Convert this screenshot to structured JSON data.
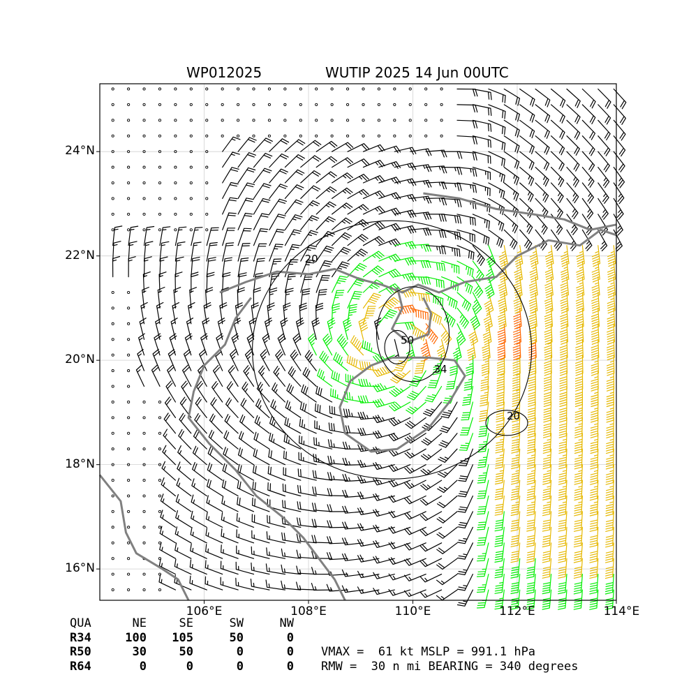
{
  "title_left": "WP012025",
  "title_right": "WUTIP 2025 14 Jun 00UTC",
  "colors": {
    "coast": "#808080",
    "grid": "#d0d0d0",
    "barb_weak": "#000000",
    "barb_34": "#00ee00",
    "barb_50": "#e6b800",
    "barb_64": "#ff6600",
    "contour": "#000000"
  },
  "quadrant_table": {
    "header": [
      "QUA",
      "NE",
      "SE",
      "SW",
      "NW"
    ],
    "rows": [
      {
        "label": "R34",
        "values": [
          "100",
          "105",
          "50",
          "0"
        ]
      },
      {
        "label": "R50",
        "values": [
          "30",
          "50",
          "0",
          "0"
        ]
      },
      {
        "label": "R64",
        "values": [
          "0",
          "0",
          "0",
          "0"
        ]
      }
    ]
  },
  "stats": {
    "line1": "VMAX =  61 kt MSLP = 991.1 hPa",
    "line2": "RMW =  30 n mi BEARING = 340 degrees"
  },
  "chart_data": {
    "type": "wind-barb map",
    "xlim": [
      104.0,
      113.9
    ],
    "ylim": [
      15.4,
      25.3
    ],
    "x_ticks": [
      106,
      108,
      110,
      112,
      114
    ],
    "x_tick_labels": [
      "106°E",
      "108°E",
      "110°E",
      "112°E",
      "114°E"
    ],
    "y_ticks": [
      16,
      18,
      20,
      22,
      24
    ],
    "y_tick_labels": [
      "16°N",
      "18°N",
      "20°N",
      "22°N",
      "24°N"
    ],
    "grid": true,
    "storm_center": {
      "lon": 109.6,
      "lat": 20.4
    },
    "wind_field": {
      "max_wind_kt": 61,
      "rmw_nmi": 30,
      "barb_spacing_deg": 0.3,
      "environmental_flow": "southerly ~40 kt east of 111°E"
    },
    "contours": [
      {
        "label": "20",
        "value_kt": 20
      },
      {
        "label": "34",
        "value_kt": 34
      },
      {
        "label": "50",
        "value_kt": 50
      },
      {
        "label": "20",
        "value_kt": 20
      }
    ],
    "coastlines": [
      {
        "name": "south-china-coast",
        "points": [
          [
            106.3,
            21.3
          ],
          [
            106.8,
            21.5
          ],
          [
            107.4,
            21.7
          ],
          [
            108.0,
            21.65
          ],
          [
            108.5,
            21.75
          ],
          [
            109.0,
            21.55
          ],
          [
            109.4,
            21.45
          ],
          [
            109.8,
            21.3
          ],
          [
            110.1,
            21.45
          ],
          [
            110.5,
            21.3
          ],
          [
            111.0,
            21.5
          ],
          [
            111.6,
            21.6
          ],
          [
            112.0,
            22.0
          ],
          [
            112.6,
            22.3
          ],
          [
            113.2,
            22.2
          ],
          [
            113.6,
            22.5
          ],
          [
            113.9,
            22.4
          ]
        ]
      },
      {
        "name": "pearl-river-delta",
        "points": [
          [
            110.2,
            23.2
          ],
          [
            110.9,
            23.1
          ],
          [
            111.6,
            22.9
          ],
          [
            112.3,
            22.8
          ],
          [
            112.9,
            22.7
          ],
          [
            113.4,
            22.5
          ],
          [
            113.9,
            22.6
          ]
        ]
      },
      {
        "name": "leizhou-peninsula",
        "points": [
          [
            109.7,
            21.4
          ],
          [
            109.8,
            21.0
          ],
          [
            109.6,
            20.6
          ],
          [
            109.9,
            20.35
          ],
          [
            110.3,
            20.5
          ],
          [
            110.35,
            20.9
          ],
          [
            110.2,
            21.2
          ]
        ]
      },
      {
        "name": "hainan-island",
        "points": [
          [
            109.6,
            20.05
          ],
          [
            110.3,
            20.05
          ],
          [
            110.8,
            20.0
          ],
          [
            111.0,
            19.7
          ],
          [
            110.7,
            19.2
          ],
          [
            110.3,
            18.7
          ],
          [
            109.7,
            18.3
          ],
          [
            109.2,
            18.25
          ],
          [
            108.7,
            18.6
          ],
          [
            108.6,
            19.1
          ],
          [
            108.8,
            19.6
          ],
          [
            109.2,
            19.9
          ],
          [
            109.6,
            20.05
          ]
        ]
      },
      {
        "name": "vietnam-coast",
        "points": [
          [
            106.9,
            21.2
          ],
          [
            106.6,
            20.8
          ],
          [
            106.4,
            20.3
          ],
          [
            106.0,
            19.9
          ],
          [
            105.8,
            19.4
          ],
          [
            105.7,
            18.9
          ],
          [
            106.1,
            18.4
          ],
          [
            106.6,
            17.9
          ],
          [
            107.0,
            17.4
          ],
          [
            107.5,
            17.0
          ],
          [
            107.9,
            16.6
          ],
          [
            108.2,
            16.2
          ],
          [
            108.5,
            15.8
          ],
          [
            108.7,
            15.4
          ]
        ]
      },
      {
        "name": "inland-border",
        "points": [
          [
            104.0,
            17.8
          ],
          [
            104.4,
            17.3
          ],
          [
            104.5,
            16.7
          ],
          [
            104.7,
            16.3
          ],
          [
            105.2,
            16.0
          ],
          [
            105.5,
            15.8
          ],
          [
            105.7,
            15.4
          ]
        ]
      }
    ]
  }
}
